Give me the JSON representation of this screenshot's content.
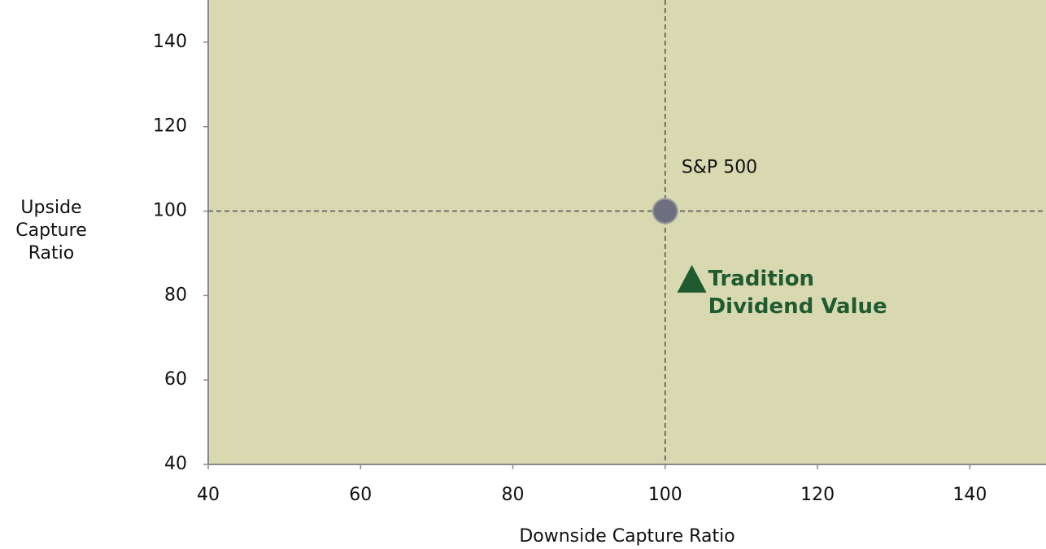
{
  "chart_data": {
    "type": "scatter",
    "x_label": "Downside Capture Ratio",
    "y_label": "Upside Capture Ratio",
    "xlim": [
      40,
      150
    ],
    "xticks": [
      40,
      60,
      80,
      100,
      120,
      140
    ],
    "ylim": [
      40,
      150
    ],
    "yticks": [
      40,
      60,
      80,
      100,
      120,
      140
    ],
    "reference_lines": {
      "x": 100,
      "y": 100
    },
    "background": "#d9d9b1",
    "series": [
      {
        "name": "S&P 500",
        "color": "#6d6f7f",
        "marker": "circle",
        "x": [
          100
        ],
        "values": [
          100
        ]
      },
      {
        "name": "Tradition Dividend Value",
        "color": "#1f5a30",
        "marker": "triangle",
        "x": [
          103.5
        ],
        "values": [
          83
        ]
      }
    ]
  }
}
